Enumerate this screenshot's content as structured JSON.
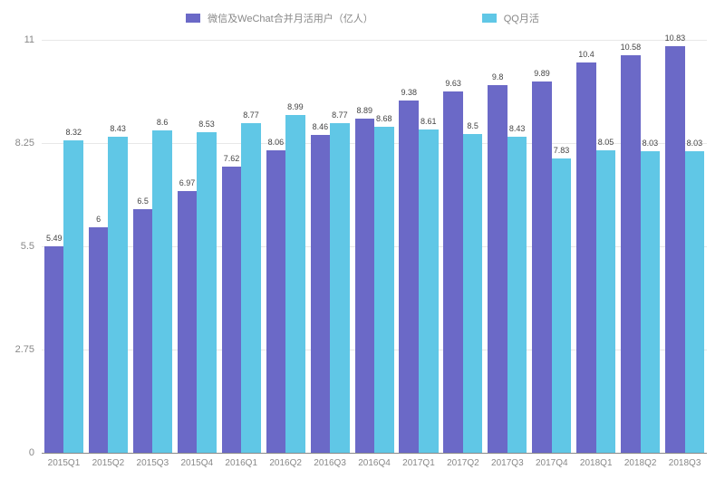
{
  "chart": {
    "type": "bar",
    "background_color": "#ffffff",
    "grid_color": "#e8e8e8",
    "axis_color": "#888888",
    "label_color": "#888888",
    "value_label_color": "#444444",
    "value_label_fontsize": 9,
    "axis_fontsize": 11,
    "x_tick_fontsize": 10,
    "ylim": [
      0,
      11
    ],
    "yticks": [
      0,
      2.75,
      5.5,
      8.25,
      11
    ],
    "legend": [
      {
        "label": "微信及WeChat合并月活用户（亿人）",
        "color": "#6b69c7"
      },
      {
        "label": "QQ月活",
        "color": "#60c7e6"
      }
    ],
    "categories": [
      "2015Q1",
      "2015Q2",
      "2015Q3",
      "2015Q4",
      "2016Q1",
      "2016Q2",
      "2016Q3",
      "2016Q4",
      "2017Q1",
      "2017Q2",
      "2017Q3",
      "2017Q4",
      "2018Q1",
      "2018Q2",
      "2018Q3"
    ],
    "series": [
      {
        "name": "wechat",
        "color": "#6b69c7",
        "values": [
          5.49,
          6,
          6.5,
          6.97,
          7.62,
          8.06,
          8.46,
          8.89,
          9.38,
          9.63,
          9.8,
          9.89,
          10.4,
          10.58,
          10.83
        ]
      },
      {
        "name": "qq",
        "color": "#60c7e6",
        "values": [
          8.32,
          8.43,
          8.6,
          8.53,
          8.77,
          8.99,
          8.77,
          8.68,
          8.61,
          8.5,
          8.43,
          7.83,
          8.05,
          8.03,
          8.03
        ]
      }
    ]
  }
}
